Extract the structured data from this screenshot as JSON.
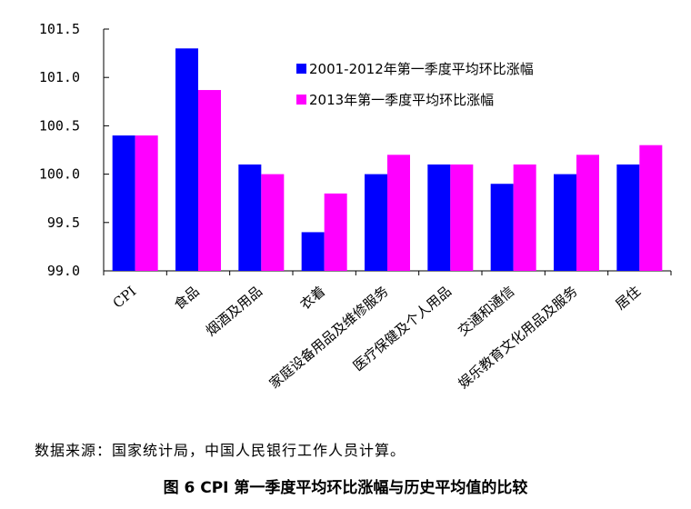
{
  "chart_data": {
    "type": "bar",
    "categories": [
      "CPI",
      "食品",
      "烟酒及用品",
      "衣着",
      "家庭设备用品及维修服务",
      "医疗保健及个人用品",
      "交通和通信",
      "娱乐教育文化用品及服务",
      "居住"
    ],
    "series": [
      {
        "name": "2001-2012年第一季度平均环比涨幅",
        "color": "#0000ff",
        "values": [
          100.4,
          101.3,
          100.1,
          99.4,
          100.0,
          100.1,
          99.9,
          100.0,
          100.1
        ]
      },
      {
        "name": "2013年第一季度平均环比涨幅",
        "color": "#ff00ff",
        "values": [
          100.4,
          100.87,
          100.0,
          99.8,
          100.2,
          100.1,
          100.1,
          100.2,
          100.3
        ]
      }
    ],
    "ylim": [
      99.0,
      101.5
    ],
    "yticks": [
      "99.0",
      "99.5",
      "100.0",
      "100.5",
      "101.0",
      "101.5"
    ],
    "grid": false,
    "legend_position": "top-right"
  },
  "source_note": "数据来源：国家统计局，中国人民银行工作人员计算。",
  "caption": "图 6 CPI 第一季度平均环比涨幅与历史平均值的比较"
}
